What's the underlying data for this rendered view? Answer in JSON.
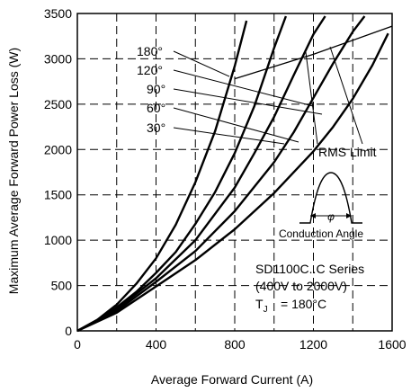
{
  "chart_data": {
    "type": "line",
    "title": "",
    "xlabel": "Average Forward Current (A)",
    "ylabel": "Maximum Average Forward Power Loss (W)",
    "xlim": [
      0,
      1600
    ],
    "ylim": [
      0,
      3500
    ],
    "x_ticks": [
      "0",
      "400",
      "800",
      "1200",
      "1600"
    ],
    "y_ticks": [
      "0",
      "500",
      "1000",
      "1500",
      "2000",
      "2500",
      "3000",
      "3500"
    ],
    "grid": "dashed",
    "series": [
      {
        "name": "180°",
        "x": [
          0,
          100,
          200,
          300,
          400,
          500,
          600,
          700,
          800,
          860
        ],
        "y": [
          0,
          120,
          290,
          520,
          800,
          1170,
          1640,
          2200,
          2920,
          3420
        ]
      },
      {
        "name": "120°",
        "x": [
          0,
          100,
          200,
          300,
          400,
          500,
          600,
          700,
          800,
          900,
          1000,
          1060
        ],
        "y": [
          0,
          110,
          260,
          430,
          640,
          870,
          1180,
          1530,
          1960,
          2480,
          3120,
          3470
        ]
      },
      {
        "name": "90°",
        "x": [
          0,
          200,
          400,
          600,
          800,
          900,
          1000,
          1100,
          1200,
          1260
        ],
        "y": [
          0,
          240,
          580,
          1000,
          1580,
          1960,
          2360,
          2820,
          3270,
          3470
        ]
      },
      {
        "name": "60°",
        "x": [
          0,
          200,
          400,
          600,
          800,
          1000,
          1100,
          1200,
          1300,
          1400,
          1460
        ],
        "y": [
          0,
          220,
          540,
          880,
          1320,
          1860,
          2190,
          2570,
          2950,
          3300,
          3470
        ]
      },
      {
        "name": "30°",
        "x": [
          0,
          200,
          400,
          600,
          800,
          1000,
          1200,
          1300,
          1400,
          1500,
          1580
        ],
        "y": [
          0,
          200,
          490,
          780,
          1120,
          1520,
          1980,
          2250,
          2560,
          2930,
          3280
        ]
      },
      {
        "name": "RMS Limit",
        "x": [
          800,
          1200,
          1600
        ],
        "y": [
          2780,
          3050,
          3360
        ]
      }
    ],
    "annotations": {
      "series_labels": [
        "180°",
        "120°",
        "90°",
        "60°",
        "30°"
      ],
      "rms_limit": "RMS Limit",
      "conduction_angle": "Conduction Angle",
      "phi_symbol": "φ",
      "series_line1": "SD1100C..C Series",
      "series_line2": "(400V to 2000V)",
      "tj_label_main": "T",
      "tj_label_sub": "J",
      "tj_value": "= 180°C"
    }
  }
}
